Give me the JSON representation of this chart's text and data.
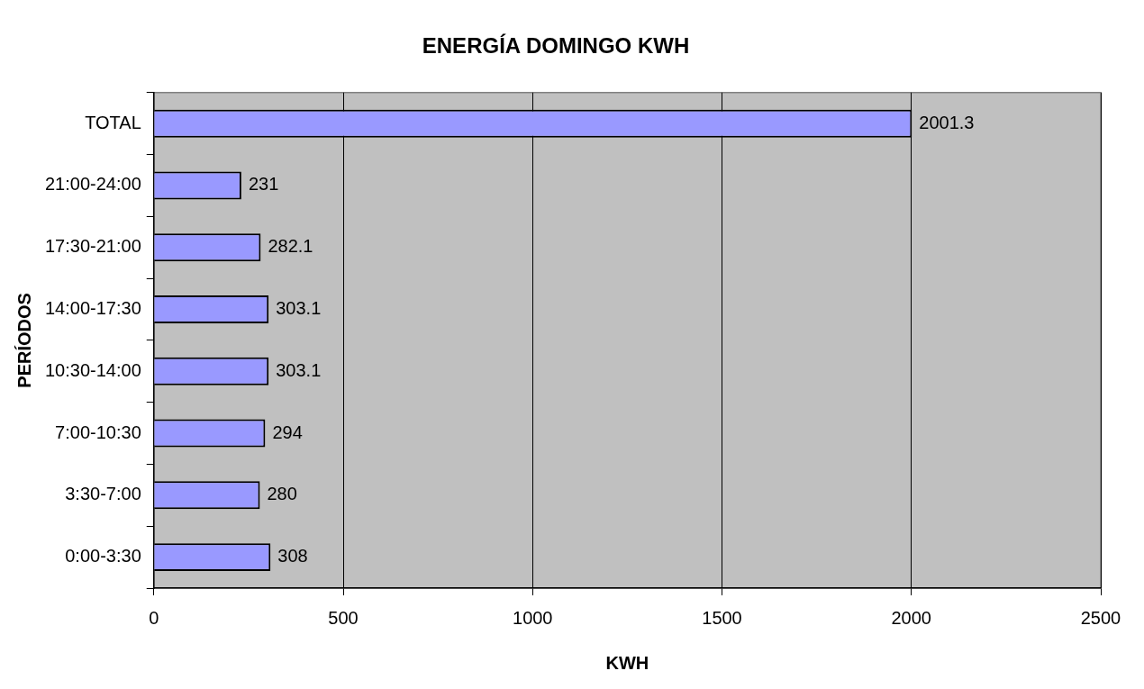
{
  "chart_data": {
    "type": "bar",
    "orientation": "horizontal",
    "title": "ENERGÍA DOMINGO KWH",
    "xlabel": "KWH",
    "ylabel": "PERÍODOS",
    "categories": [
      "TOTAL",
      "21:00-24:00",
      "17:30-21:00",
      "14:00-17:30",
      "10:30-14:00",
      "7:00-10:30",
      "3:30-7:00",
      "0:00-3:30"
    ],
    "values": [
      2001.3,
      231,
      282.1,
      303.1,
      303.1,
      294,
      280,
      308
    ],
    "color": "#9999ff",
    "xlim": [
      0,
      2500
    ],
    "xticks": [
      0,
      500,
      1000,
      1500,
      2000,
      2500
    ],
    "grid": "x",
    "legend": false,
    "data_labels": true
  }
}
